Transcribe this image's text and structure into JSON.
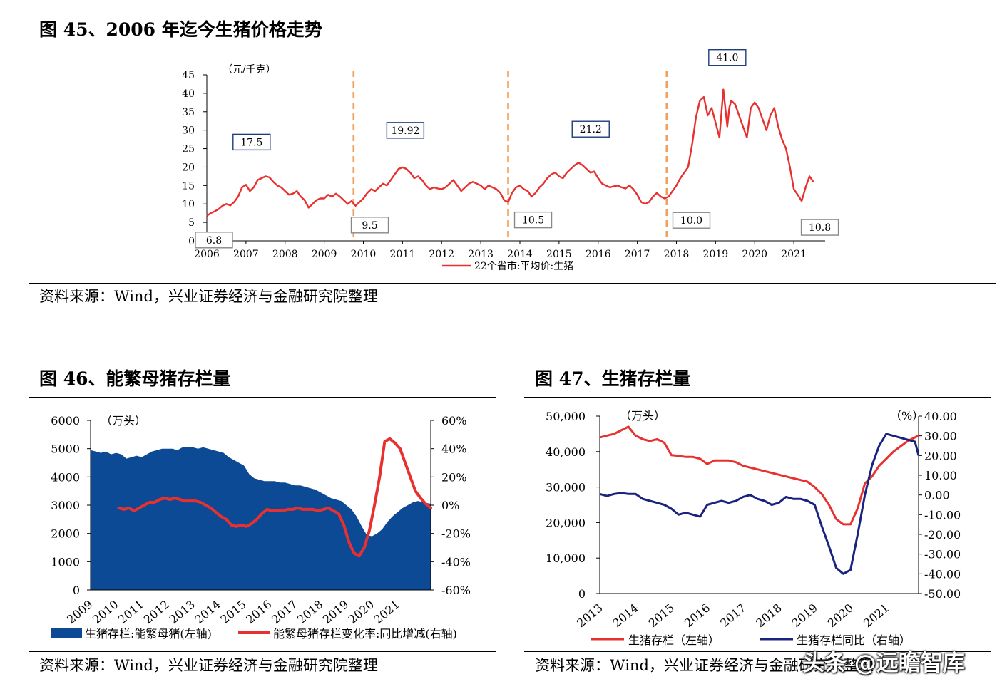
{
  "figures": [
    {
      "title": "图 45、2006 年迄今生猪价格走势",
      "source": "资料来源：Wind，兴业证券经济与金融研究院整理",
      "unit_left": "（元/千克）",
      "legend": [
        "22个省市:平均价:生猪"
      ]
    },
    {
      "title": "图 46、能繁母猪存栏量",
      "source": "资料来源：Wind，兴业证券经济与金融研究院整理",
      "unit_left": "（万头）",
      "legend": [
        "生猪存栏:能繁母猪(左轴)",
        "能繁母猪存栏变化率:同比增减(右轴)"
      ]
    },
    {
      "title": "图 47、生猪存栏量",
      "source": "资料来源：Wind，兴业证券经济与金融研究院整理",
      "unit_left": "（万头）",
      "unit_right": "（%）",
      "legend": [
        "生猪存栏（左轴）",
        "生猪存栏同比（右轴）"
      ]
    }
  ],
  "watermark": "头条 @远瞻智库",
  "colors": {
    "red": "#e8302f",
    "blue": "#0c4a95",
    "navy": "#1a237e",
    "orange": "#f0a05a",
    "boxborder": "#1f3d7a",
    "grayborder": "#888888"
  },
  "chart_data": [
    {
      "type": "line",
      "title": "图 45、2006 年迄今生猪价格走势",
      "ylabel": "（元/千克）",
      "ylim": [
        0,
        45
      ],
      "yticks": [
        0,
        5,
        10,
        15,
        20,
        25,
        30,
        35,
        40,
        45
      ],
      "xlim": [
        2006,
        2021.8
      ],
      "xticks": [
        2006,
        2007,
        2008,
        2009,
        2010,
        2011,
        2012,
        2013,
        2014,
        2015,
        2016,
        2017,
        2018,
        2019,
        2020,
        2021
      ],
      "cycle_dividers": [
        2009.75,
        2013.7,
        2017.75
      ],
      "series": [
        {
          "name": "22个省市:平均价:生猪",
          "x": [
            2006.0,
            2006.1,
            2006.2,
            2006.3,
            2006.4,
            2006.5,
            2006.6,
            2006.7,
            2006.8,
            2006.9,
            2007.0,
            2007.1,
            2007.2,
            2007.3,
            2007.4,
            2007.5,
            2007.6,
            2007.7,
            2007.8,
            2007.9,
            2008.0,
            2008.1,
            2008.2,
            2008.3,
            2008.4,
            2008.5,
            2008.6,
            2008.7,
            2008.8,
            2008.9,
            2009.0,
            2009.1,
            2009.2,
            2009.3,
            2009.4,
            2009.5,
            2009.6,
            2009.7,
            2009.8,
            2009.9,
            2010.0,
            2010.1,
            2010.2,
            2010.3,
            2010.4,
            2010.5,
            2010.6,
            2010.7,
            2010.8,
            2010.9,
            2011.0,
            2011.1,
            2011.2,
            2011.3,
            2011.4,
            2011.5,
            2011.6,
            2011.7,
            2011.8,
            2011.9,
            2012.0,
            2012.1,
            2012.2,
            2012.3,
            2012.4,
            2012.5,
            2012.6,
            2012.7,
            2012.8,
            2012.9,
            2013.0,
            2013.1,
            2013.2,
            2013.3,
            2013.4,
            2013.5,
            2013.6,
            2013.7,
            2013.8,
            2013.9,
            2014.0,
            2014.1,
            2014.2,
            2014.3,
            2014.4,
            2014.5,
            2014.6,
            2014.7,
            2014.8,
            2014.9,
            2015.0,
            2015.1,
            2015.2,
            2015.3,
            2015.4,
            2015.5,
            2015.6,
            2015.7,
            2015.8,
            2015.9,
            2016.0,
            2016.1,
            2016.2,
            2016.3,
            2016.4,
            2016.5,
            2016.6,
            2016.7,
            2016.8,
            2016.9,
            2017.0,
            2017.1,
            2017.2,
            2017.3,
            2017.4,
            2017.5,
            2017.6,
            2017.7,
            2017.8,
            2017.9,
            2018.0,
            2018.1,
            2018.2,
            2018.3,
            2018.4,
            2018.5,
            2018.6,
            2018.7,
            2018.8,
            2018.9,
            2019.0,
            2019.1,
            2019.2,
            2019.3,
            2019.35,
            2019.4,
            2019.5,
            2019.6,
            2019.7,
            2019.8,
            2019.9,
            2020.0,
            2020.1,
            2020.2,
            2020.3,
            2020.4,
            2020.5,
            2020.6,
            2020.7,
            2020.8,
            2020.9,
            2021.0,
            2021.1,
            2021.2,
            2021.3,
            2021.4,
            2021.5
          ],
          "values": [
            6.8,
            7.5,
            8.0,
            8.6,
            9.5,
            10.0,
            9.6,
            10.5,
            12.0,
            14.5,
            15.2,
            13.5,
            14.5,
            16.5,
            17.0,
            17.5,
            17.2,
            16.0,
            15.0,
            14.5,
            13.5,
            12.5,
            12.8,
            13.5,
            12.0,
            11.0,
            9.0,
            10.0,
            11.0,
            11.5,
            11.5,
            12.5,
            12.0,
            12.8,
            12.0,
            11.0,
            10.0,
            10.8,
            9.5,
            10.5,
            11.5,
            13.0,
            14.0,
            13.5,
            14.5,
            15.5,
            15.0,
            16.5,
            18.0,
            19.5,
            19.92,
            19.5,
            18.5,
            17.0,
            17.5,
            16.5,
            15.0,
            14.0,
            14.5,
            14.2,
            14.0,
            14.5,
            15.5,
            16.5,
            15.0,
            13.5,
            14.5,
            15.5,
            16.0,
            15.5,
            15.0,
            14.0,
            15.0,
            14.5,
            14.0,
            13.0,
            11.0,
            10.5,
            13.0,
            14.5,
            15.0,
            14.0,
            13.5,
            12.0,
            13.0,
            14.5,
            15.5,
            17.0,
            18.0,
            18.5,
            17.5,
            17.0,
            18.5,
            19.5,
            20.5,
            21.2,
            20.5,
            19.5,
            18.5,
            18.8,
            17.0,
            15.5,
            15.0,
            14.5,
            14.8,
            15.0,
            14.5,
            14.2,
            15.0,
            14.0,
            12.5,
            10.5,
            10.0,
            10.5,
            12.0,
            13.0,
            12.0,
            11.5,
            12.0,
            13.5,
            15.0,
            17.0,
            18.5,
            20.0,
            26.0,
            33.5,
            38.0,
            39.0,
            34.0,
            36.0,
            32.0,
            28.0,
            41.0,
            31.0,
            36.0,
            38.0,
            37.0,
            34.0,
            31.0,
            28.0,
            36.0,
            37.5,
            36.0,
            33.0,
            30.0,
            34.0,
            36.0,
            31.0,
            27.5,
            25.0,
            20.0,
            14.0,
            12.5,
            10.8,
            14.5,
            17.5,
            16.0
          ]
        }
      ],
      "annotations": [
        {
          "label": "17.5",
          "x": 2007.6,
          "value": 17.5
        },
        {
          "label": "6.8",
          "x": 2006.0,
          "value": 6.8
        },
        {
          "label": "19.92",
          "x": 2011.0,
          "value": 19.92
        },
        {
          "label": "9.5",
          "x": 2009.8,
          "value": 9.5
        },
        {
          "label": "21.2",
          "x": 2015.9,
          "value": 21.2
        },
        {
          "label": "10.5",
          "x": 2013.7,
          "value": 10.5
        },
        {
          "label": "41.0",
          "x": 2019.3,
          "value": 41.0
        },
        {
          "label": "10.0",
          "x": 2017.8,
          "value": 10.0
        },
        {
          "label": "10.8",
          "x": 2021.3,
          "value": 10.8
        }
      ]
    },
    {
      "type": "area",
      "title": "图 46、能繁母猪存栏量",
      "ylabel": "（万头）",
      "ylim": [
        0,
        6000
      ],
      "yticks": [
        0,
        1000,
        2000,
        3000,
        4000,
        5000,
        6000
      ],
      "y2lim": [
        -60,
        60
      ],
      "y2ticks": [
        "-60%",
        "-40%",
        "-20%",
        "0%",
        "20%",
        "40%",
        "60%"
      ],
      "xlim": [
        2009,
        2022.3
      ],
      "xticks": [
        "2009",
        "2010",
        "2011",
        "2012",
        "2013",
        "2014",
        "2015",
        "2016",
        "2017",
        "2018",
        "2019",
        "2020",
        "2021"
      ],
      "series": [
        {
          "name": "生猪存栏:能繁母猪(左轴)",
          "axis": "left",
          "x": [
            2009.0,
            2009.2,
            2009.4,
            2009.6,
            2009.8,
            2010.0,
            2010.2,
            2010.4,
            2010.6,
            2010.8,
            2011.0,
            2011.2,
            2011.4,
            2011.6,
            2011.8,
            2012.0,
            2012.2,
            2012.4,
            2012.6,
            2012.8,
            2013.0,
            2013.2,
            2013.4,
            2013.6,
            2013.8,
            2014.0,
            2014.2,
            2014.4,
            2014.6,
            2014.8,
            2015.0,
            2015.2,
            2015.4,
            2015.6,
            2015.8,
            2016.0,
            2016.2,
            2016.4,
            2016.6,
            2016.8,
            2017.0,
            2017.2,
            2017.4,
            2017.6,
            2017.8,
            2018.0,
            2018.2,
            2018.4,
            2018.6,
            2018.8,
            2019.0,
            2019.2,
            2019.4,
            2019.6,
            2019.8,
            2020.0,
            2020.2,
            2020.4,
            2020.6,
            2020.8,
            2021.0,
            2021.2,
            2021.4,
            2021.6,
            2021.8,
            2022.0,
            2022.3
          ],
          "values": [
            4950,
            4900,
            4850,
            4900,
            4800,
            4850,
            4800,
            4650,
            4700,
            4750,
            4700,
            4800,
            4900,
            4950,
            5000,
            5000,
            5000,
            4950,
            5050,
            5050,
            5050,
            5000,
            5050,
            5000,
            4950,
            4900,
            4850,
            4700,
            4600,
            4500,
            4400,
            4100,
            3950,
            3900,
            3850,
            3850,
            3850,
            3800,
            3800,
            3750,
            3700,
            3700,
            3650,
            3600,
            3550,
            3450,
            3350,
            3250,
            3200,
            3150,
            3000,
            2850,
            2600,
            2250,
            1950,
            1900,
            2000,
            2150,
            2400,
            2600,
            2750,
            2900,
            3000,
            3100,
            3150,
            3100,
            3050
          ]
        },
        {
          "name": "能繁母猪存栏变化率:同比增减(右轴)",
          "axis": "right",
          "x": [
            2010.1,
            2010.3,
            2010.5,
            2010.7,
            2010.9,
            2011.1,
            2011.3,
            2011.5,
            2011.7,
            2011.9,
            2012.1,
            2012.3,
            2012.5,
            2012.7,
            2012.9,
            2013.1,
            2013.3,
            2013.5,
            2013.7,
            2013.9,
            2014.1,
            2014.3,
            2014.5,
            2014.7,
            2014.9,
            2015.1,
            2015.3,
            2015.5,
            2015.7,
            2015.9,
            2016.1,
            2016.3,
            2016.5,
            2016.7,
            2016.9,
            2017.1,
            2017.3,
            2017.5,
            2017.7,
            2017.9,
            2018.1,
            2018.3,
            2018.5,
            2018.7,
            2018.9,
            2019.1,
            2019.3,
            2019.5,
            2019.7,
            2019.9,
            2020.1,
            2020.3,
            2020.5,
            2020.7,
            2020.9,
            2021.1,
            2021.3,
            2021.5,
            2021.7,
            2021.9,
            2022.1,
            2022.3
          ],
          "values": [
            -2,
            -3,
            -2,
            -4,
            -2,
            0,
            2,
            2,
            4,
            5,
            4,
            5,
            4,
            3,
            3,
            3,
            2,
            0,
            -2,
            -5,
            -8,
            -10,
            -14,
            -15,
            -14,
            -15,
            -13,
            -10,
            -6,
            -3,
            -4,
            -4,
            -4,
            -3,
            -3,
            -2,
            -3,
            -3,
            -3,
            -4,
            -3,
            -2,
            -4,
            -6,
            -14,
            -26,
            -34,
            -36,
            -30,
            -18,
            0,
            20,
            45,
            47,
            44,
            40,
            30,
            20,
            10,
            5,
            1,
            -2
          ]
        }
      ]
    },
    {
      "type": "line",
      "title": "图 47、生猪存栏量",
      "ylabel": "（万头）",
      "y2label": "（%）",
      "ylim": [
        0,
        50000
      ],
      "yticks": [
        "0",
        "10,000",
        "20,000",
        "30,000",
        "40,000",
        "50,000"
      ],
      "y2lim": [
        -50,
        40
      ],
      "y2ticks": [
        "-50.00",
        "-40.00",
        "-30.00",
        "-20.00",
        "-10.00",
        "0.00",
        "10.00",
        "20.00",
        "30.00",
        "40.00"
      ],
      "xlim": [
        2013,
        2021.9
      ],
      "xticks": [
        "2013",
        "2014",
        "2015",
        "2016",
        "2017",
        "2018",
        "2019",
        "2020",
        "2021"
      ],
      "series": [
        {
          "name": "生猪存栏（左轴）",
          "axis": "left",
          "x": [
            2013.0,
            2013.2,
            2013.4,
            2013.6,
            2013.8,
            2014.0,
            2014.2,
            2014.4,
            2014.6,
            2014.8,
            2015.0,
            2015.2,
            2015.4,
            2015.6,
            2015.8,
            2016.0,
            2016.2,
            2016.4,
            2016.6,
            2016.8,
            2017.0,
            2017.2,
            2017.4,
            2017.6,
            2017.8,
            2018.0,
            2018.2,
            2018.4,
            2018.6,
            2018.8,
            2019.0,
            2019.2,
            2019.4,
            2019.6,
            2019.8,
            2020.0,
            2020.2,
            2020.4,
            2020.6,
            2020.8,
            2021.0,
            2021.2,
            2021.4,
            2021.6,
            2021.8,
            2021.9
          ],
          "values": [
            44000,
            44500,
            45000,
            46000,
            47000,
            44500,
            43500,
            43000,
            43500,
            42500,
            39000,
            38800,
            38500,
            38500,
            38000,
            36500,
            37500,
            37500,
            37500,
            37000,
            36000,
            35500,
            35000,
            34500,
            34000,
            33500,
            33000,
            32500,
            32000,
            31500,
            30000,
            28000,
            25000,
            21000,
            19500,
            19500,
            24000,
            31000,
            33000,
            36000,
            38000,
            40000,
            41500,
            43000,
            44000,
            44500
          ]
        },
        {
          "name": "生猪存栏同比（右轴）",
          "axis": "right",
          "x": [
            2013.0,
            2013.2,
            2013.4,
            2013.6,
            2013.8,
            2014.0,
            2014.2,
            2014.4,
            2014.6,
            2014.8,
            2015.0,
            2015.2,
            2015.4,
            2015.6,
            2015.8,
            2016.0,
            2016.2,
            2016.4,
            2016.6,
            2016.8,
            2017.0,
            2017.2,
            2017.4,
            2017.6,
            2017.8,
            2018.0,
            2018.2,
            2018.4,
            2018.6,
            2018.8,
            2019.0,
            2019.2,
            2019.4,
            2019.6,
            2019.8,
            2020.0,
            2020.2,
            2020.4,
            2020.6,
            2020.8,
            2021.0,
            2021.2,
            2021.4,
            2021.6,
            2021.8,
            2021.9
          ],
          "values": [
            0.5,
            -0.5,
            0.5,
            1,
            0.5,
            0.5,
            -2,
            -3,
            -4,
            -5,
            -7,
            -10,
            -9,
            -10,
            -11,
            -5,
            -4,
            -3,
            -4,
            -3,
            -1,
            0,
            -2,
            -3,
            -5,
            -4,
            -1,
            -2,
            -2,
            -3,
            -5,
            -16,
            -26,
            -37,
            -40,
            -38,
            -20,
            0,
            15,
            25,
            31,
            30,
            29,
            28,
            27,
            20
          ]
        }
      ]
    }
  ]
}
